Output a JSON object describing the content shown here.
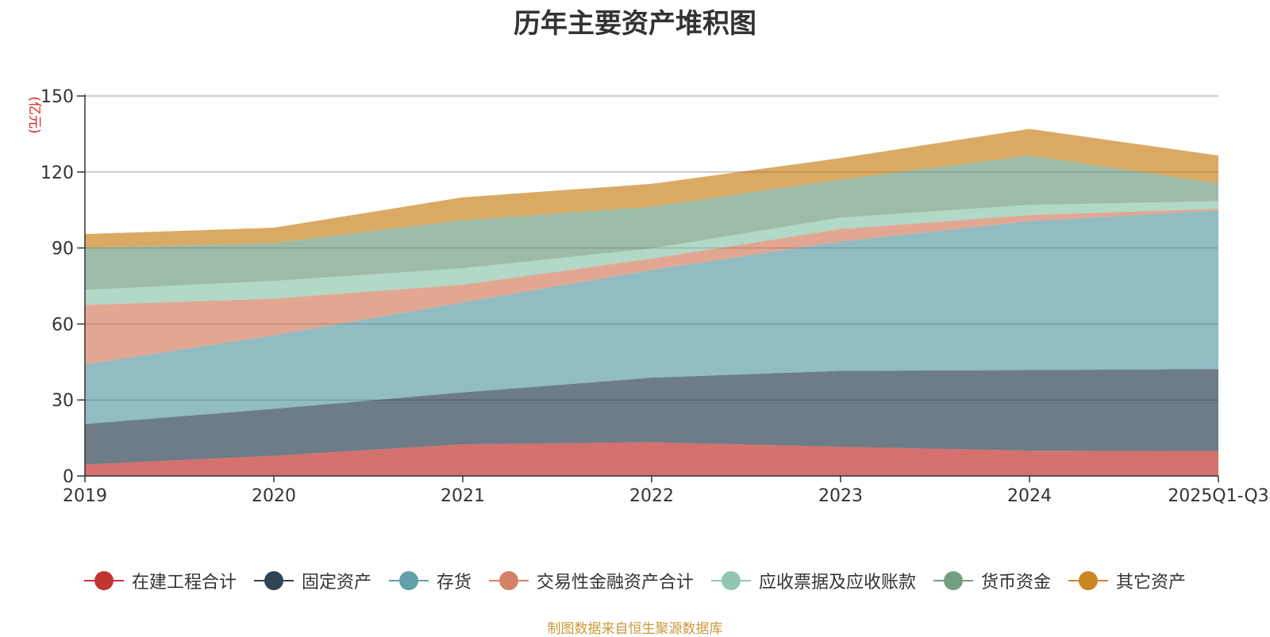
{
  "chart_data": {
    "type": "area",
    "stacked": true,
    "title": "历年主要资产堆积图",
    "unit_label": "(亿元)",
    "categories": [
      "2019",
      "2020",
      "2021",
      "2022",
      "2023",
      "2024",
      "2025Q1-Q3"
    ],
    "ylim": [
      0,
      150
    ],
    "yticks": [
      0,
      30,
      60,
      90,
      120,
      150
    ],
    "grid": true,
    "legend_position": "bottom",
    "series": [
      {
        "name": "在建工程合计",
        "color": "#c23531",
        "values": [
          4.5,
          8.0,
          12.5,
          13.3,
          11.5,
          10.0,
          9.8
        ]
      },
      {
        "name": "固定资产",
        "color": "#2f4554",
        "values": [
          16.0,
          18.5,
          20.5,
          25.5,
          30.0,
          31.8,
          32.4
        ]
      },
      {
        "name": "存货",
        "color": "#61a0a8",
        "values": [
          23.5,
          29.0,
          35.5,
          42.5,
          51.0,
          58.8,
          62.6
        ]
      },
      {
        "name": "交易性金融资产合计",
        "color": "#d48265",
        "values": [
          23.5,
          14.5,
          7.0,
          4.5,
          5.0,
          2.4,
          0.7
        ]
      },
      {
        "name": "应收票据及应收账款",
        "color": "#91c7ae",
        "values": [
          6.0,
          7.0,
          6.5,
          4.0,
          4.5,
          4.0,
          3.0
        ]
      },
      {
        "name": "货币资金",
        "color": "#749f83",
        "values": [
          16.5,
          15.0,
          19.0,
          16.5,
          15.0,
          19.5,
          7.0
        ]
      },
      {
        "name": "其它资产",
        "color": "#ca8622",
        "values": [
          5.5,
          6.0,
          9.0,
          9.0,
          8.5,
          10.5,
          11.0
        ]
      }
    ]
  },
  "source_note": "制图数据来自恒生聚源数据库"
}
